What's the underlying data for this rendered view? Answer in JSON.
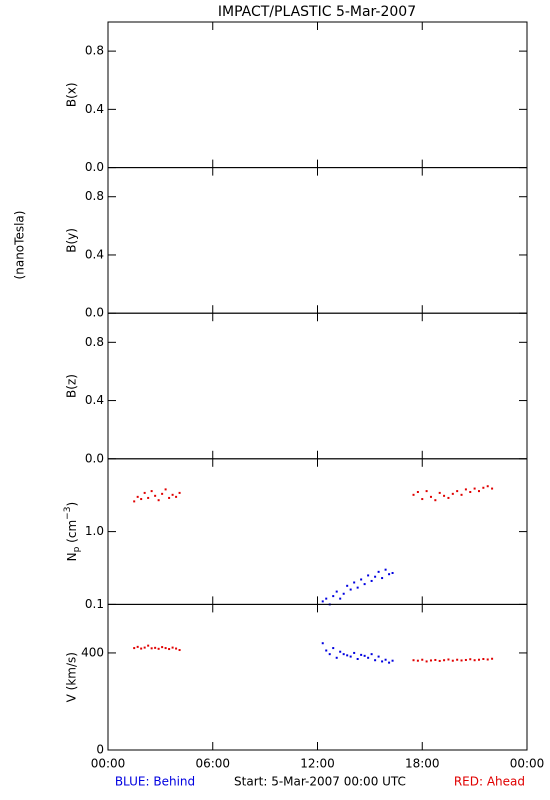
{
  "title": "IMPACT/PLASTIC     5-Mar-2007",
  "unit_label": "(nanoTesla)",
  "footer": {
    "behind": "BLUE: Behind",
    "start": "Start:  5-Mar-2007 00:00 UTC",
    "ahead": "RED: Ahead"
  },
  "chart_data": [
    {
      "type": "scatter",
      "ylabel": "B(x)",
      "xlim": [
        0,
        24
      ],
      "ylim": [
        0,
        1
      ],
      "yticks": [
        {
          "value": 0,
          "label": "0.0"
        },
        0.4,
        0.8
      ],
      "series": []
    },
    {
      "type": "scatter",
      "ylabel": "B(y)",
      "xlim": [
        0,
        24
      ],
      "ylim": [
        0,
        1
      ],
      "yticks": [
        {
          "value": 0,
          "label": "0.0"
        },
        0.4,
        0.8
      ],
      "series": []
    },
    {
      "type": "scatter",
      "ylabel": "B(z)",
      "xlim": [
        0,
        24
      ],
      "ylim": [
        0,
        1
      ],
      "yticks": [
        {
          "value": 0,
          "label": "0.0"
        },
        0.4,
        0.8
      ],
      "series": []
    },
    {
      "type": "scatter",
      "ylabel": {
        "main": "N",
        "sub": "p",
        "unit": " (cm",
        "sup": "−3",
        "end": ")"
      },
      "log_scale": true,
      "xlim": [
        0,
        24
      ],
      "ylim": [
        0.1,
        10
      ],
      "yticks": [
        0.1,
        {
          "value": 1,
          "label": "1.0"
        }
      ],
      "series": [
        {
          "color": "#e00000",
          "x": [
            1.5,
            1.7,
            1.9,
            2.1,
            2.3,
            2.5,
            2.7,
            2.9,
            3.1,
            3.3,
            3.5,
            3.7,
            3.9,
            4.1,
            17.5,
            17.75,
            18,
            18.25,
            18.5,
            18.75,
            19,
            19.25,
            19.5,
            19.75,
            20,
            20.25,
            20.5,
            20.75,
            21,
            21.25,
            21.5,
            21.75,
            22
          ],
          "values": [
            2.6,
            3.0,
            2.8,
            3.4,
            2.9,
            3.6,
            3.1,
            2.7,
            3.3,
            3.8,
            2.9,
            3.2,
            3.0,
            3.4,
            3.2,
            3.5,
            2.8,
            3.6,
            3.0,
            2.7,
            3.4,
            3.1,
            2.9,
            3.3,
            3.6,
            3.2,
            3.8,
            3.5,
            3.9,
            3.6,
            4.0,
            4.2,
            3.9
          ]
        },
        {
          "color": "#0000e0",
          "x": [
            12.3,
            12.5,
            12.7,
            12.9,
            13.1,
            13.3,
            13.5,
            13.7,
            13.9,
            14.1,
            14.3,
            14.5,
            14.7,
            14.9,
            15.1,
            15.3,
            15.5,
            15.7,
            15.9,
            16.1,
            16.3
          ],
          "values": [
            0.11,
            0.12,
            0.1,
            0.13,
            0.15,
            0.12,
            0.14,
            0.18,
            0.16,
            0.2,
            0.17,
            0.22,
            0.19,
            0.25,
            0.21,
            0.24,
            0.28,
            0.23,
            0.3,
            0.26,
            0.27
          ]
        }
      ]
    },
    {
      "type": "scatter",
      "ylabel": "V (km/s)",
      "xlim": [
        0,
        24
      ],
      "ylim": [
        0,
        600
      ],
      "yticks": [
        0,
        400
      ],
      "xticks": [
        {
          "value": 0,
          "label": "00:00"
        },
        {
          "value": 6,
          "label": "06:00"
        },
        {
          "value": 12,
          "label": "12:00"
        },
        {
          "value": 18,
          "label": "18:00"
        },
        {
          "value": 24,
          "label": "00:00"
        }
      ],
      "series": [
        {
          "color": "#e00000",
          "x": [
            1.5,
            1.7,
            1.9,
            2.1,
            2.3,
            2.5,
            2.7,
            2.9,
            3.1,
            3.3,
            3.5,
            3.7,
            3.9,
            4.1,
            17.5,
            17.75,
            18,
            18.25,
            18.5,
            18.75,
            19,
            19.25,
            19.5,
            19.75,
            20,
            20.25,
            20.5,
            20.75,
            21,
            21.25,
            21.5,
            21.75,
            22
          ],
          "values": [
            420,
            425,
            418,
            422,
            430,
            419,
            421,
            417,
            424,
            420,
            416,
            422,
            418,
            412,
            370,
            368,
            372,
            365,
            369,
            371,
            367,
            370,
            373,
            368,
            372,
            369,
            371,
            374,
            370,
            372,
            375,
            373,
            376
          ]
        },
        {
          "color": "#0000e0",
          "x": [
            12.3,
            12.5,
            12.7,
            12.9,
            13.1,
            13.3,
            13.5,
            13.7,
            13.9,
            14.1,
            14.3,
            14.5,
            14.7,
            14.9,
            15.1,
            15.3,
            15.5,
            15.7,
            15.9,
            16.1,
            16.3
          ],
          "values": [
            440,
            410,
            395,
            420,
            380,
            405,
            395,
            390,
            385,
            400,
            375,
            392,
            388,
            380,
            395,
            370,
            385,
            365,
            372,
            360,
            368
          ]
        }
      ]
    }
  ]
}
